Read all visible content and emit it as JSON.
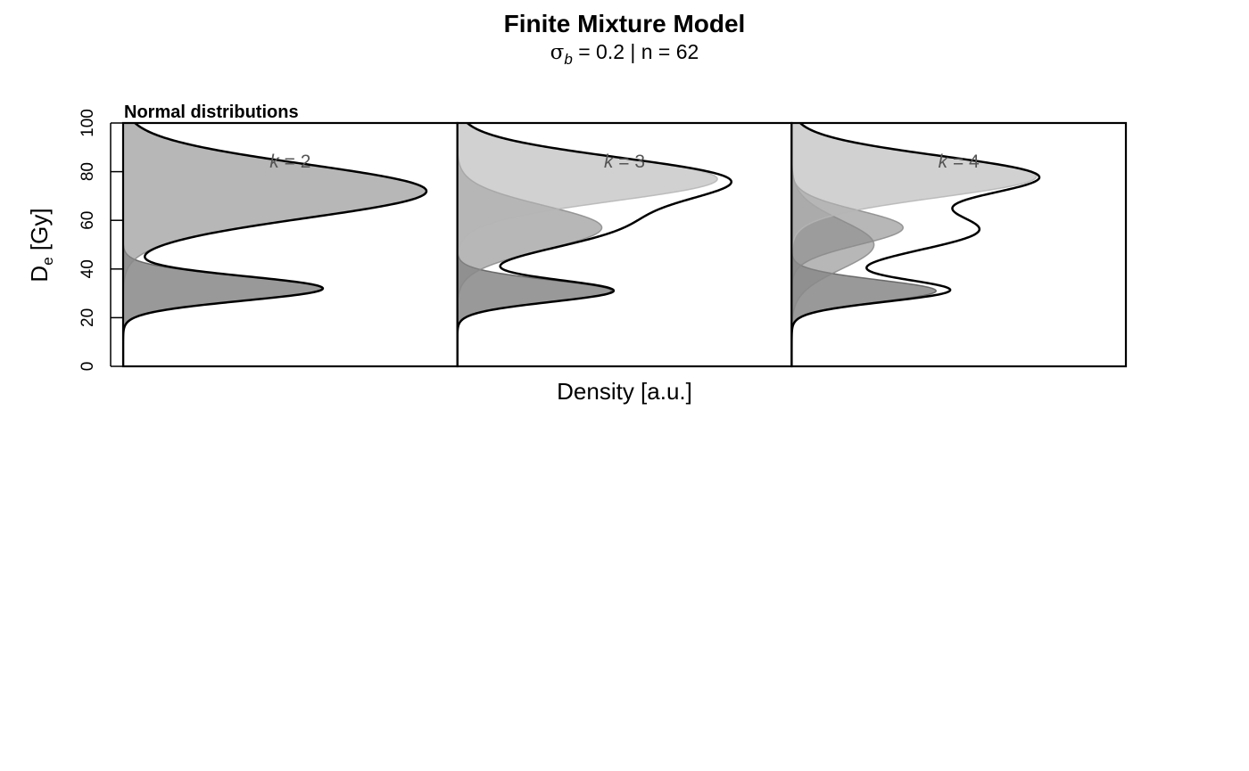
{
  "chart_data": {
    "type": "area",
    "title": "Finite Mixture Model",
    "subtitle": {
      "sigma_symbol": "σ",
      "sigma_subscript": "b",
      "rest": " = 0.2 | n = 62"
    },
    "panel_label": "Normal distributions",
    "xlabel": "Density [a.u.]",
    "ylabel": {
      "main": "D",
      "subscript": "e",
      "rest": " [Gy]"
    },
    "ylim": [
      0,
      100
    ],
    "yticks": [
      "0",
      "20",
      "40",
      "60",
      "80",
      "100"
    ],
    "orientation": "horizontal-density",
    "colors": {
      "component_dark": "#5a5a5a",
      "component_mid": "#8a8a8a",
      "component_light": "#b5b5b5",
      "sum_line": "#000000"
    },
    "panels": [
      {
        "k_label": "k = 2",
        "k": 2,
        "components": [
          {
            "mean": 32,
            "sd": 5,
            "weight": 0.23
          },
          {
            "mean": 72,
            "sd": 11,
            "weight": 0.77
          }
        ]
      },
      {
        "k_label": "k = 3",
        "k": 3,
        "components": [
          {
            "mean": 31,
            "sd": 4.5,
            "weight": 0.16
          },
          {
            "mean": 57,
            "sd": 9,
            "weight": 0.3
          },
          {
            "mean": 77,
            "sd": 9,
            "weight": 0.54
          }
        ]
      },
      {
        "k_label": "k = 4",
        "k": 4,
        "components": [
          {
            "mean": 31,
            "sd": 4.5,
            "weight": 0.15
          },
          {
            "mean": 50,
            "sd": 10,
            "weight": 0.19
          },
          {
            "mean": 57,
            "sd": 7,
            "weight": 0.18
          },
          {
            "mean": 78,
            "sd": 8.5,
            "weight": 0.48
          }
        ]
      }
    ]
  }
}
